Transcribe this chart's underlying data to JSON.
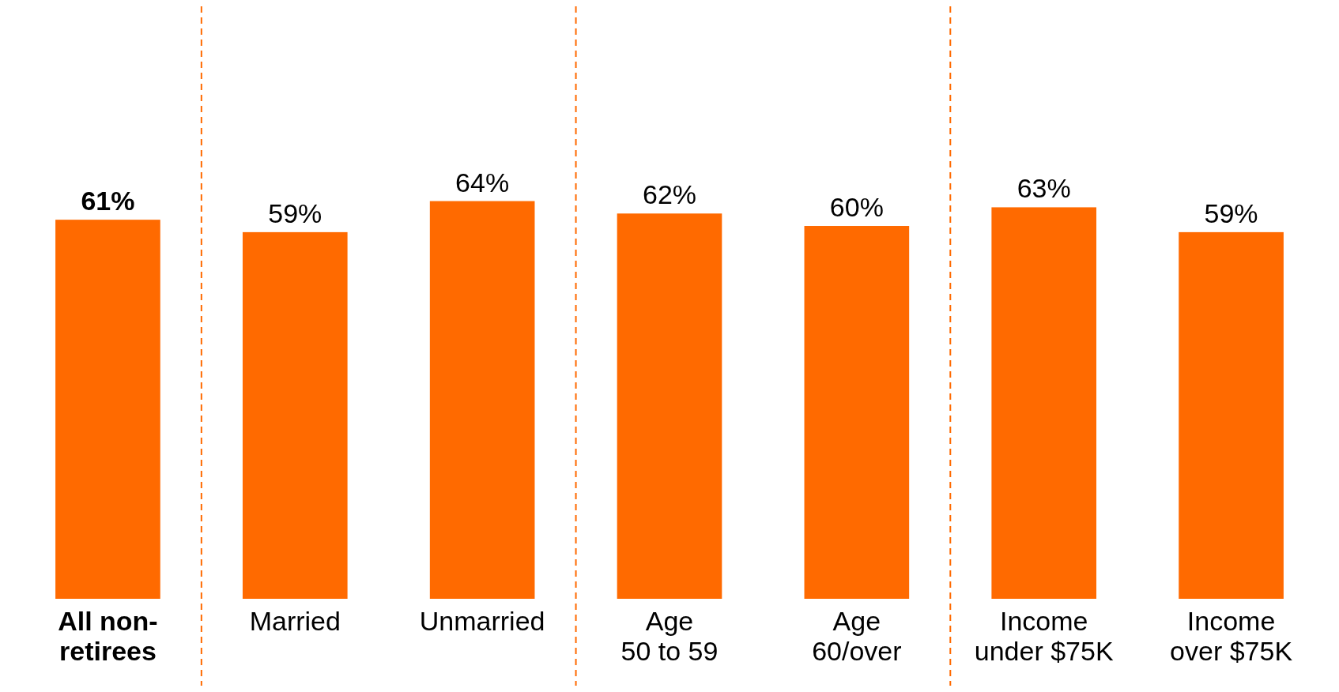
{
  "chart_data": {
    "type": "bar",
    "categories": [
      "All non-\nretirees",
      "Married",
      "Unmarried",
      "Age\n50 to 59",
      "Age\n60/over",
      "Income\nunder $75K",
      "Income\nover $75K"
    ],
    "values": [
      61,
      59,
      64,
      62,
      60,
      63,
      59
    ],
    "value_labels": [
      "61%",
      "59%",
      "64%",
      "62%",
      "60%",
      "63%",
      "59%"
    ],
    "color": "#ff6a00"
  }
}
